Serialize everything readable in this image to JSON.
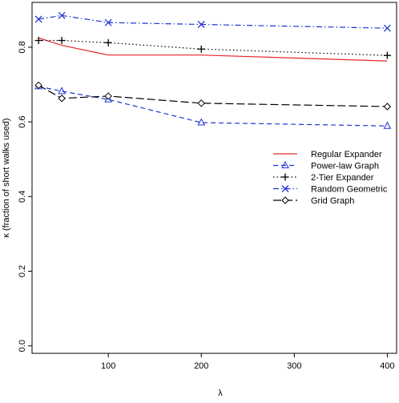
{
  "chart_data": {
    "type": "line",
    "title": "",
    "xlabel": "λ",
    "ylabel": "κ (fraction of short walks used)",
    "xlim": [
      18,
      410
    ],
    "ylim": [
      -0.02,
      0.92
    ],
    "x_ticks": [
      100,
      200,
      300,
      400
    ],
    "y_ticks": [
      0.0,
      0.2,
      0.4,
      0.6,
      0.8
    ],
    "y_tick_labels": [
      "0.0",
      "0.2",
      "0.4",
      "0.6",
      "0.8"
    ],
    "grid": false,
    "legend_position": "right",
    "series": [
      {
        "name": "Regular Expander",
        "color": "#e8262b",
        "line_style": "solid",
        "marker": "none",
        "x": [
          25,
          50,
          100,
          200,
          400
        ],
        "values": [
          0.825,
          0.805,
          0.779,
          0.779,
          0.763
        ]
      },
      {
        "name": "Power-law Graph",
        "color": "#1f33d1",
        "line_style": "dashed",
        "marker": "triangle",
        "x": [
          25,
          50,
          100,
          200,
          400
        ],
        "values": [
          0.695,
          0.682,
          0.66,
          0.598,
          0.589
        ]
      },
      {
        "name": "2-Tier Expander",
        "color": "#000000",
        "line_style": "dotted",
        "marker": "plus",
        "x": [
          25,
          50,
          100,
          200,
          400
        ],
        "values": [
          0.818,
          0.818,
          0.812,
          0.795,
          0.778
        ]
      },
      {
        "name": "Random Geometric",
        "color": "#1f33d1",
        "line_style": "dashdot",
        "marker": "cross",
        "x": [
          25,
          50,
          100,
          200,
          400
        ],
        "values": [
          0.875,
          0.885,
          0.866,
          0.861,
          0.851
        ]
      },
      {
        "name": "Grid Graph",
        "color": "#000000",
        "line_style": "longdash",
        "marker": "diamond",
        "x": [
          25,
          50,
          100,
          200,
          400
        ],
        "values": [
          0.698,
          0.663,
          0.669,
          0.65,
          0.641
        ]
      }
    ]
  }
}
